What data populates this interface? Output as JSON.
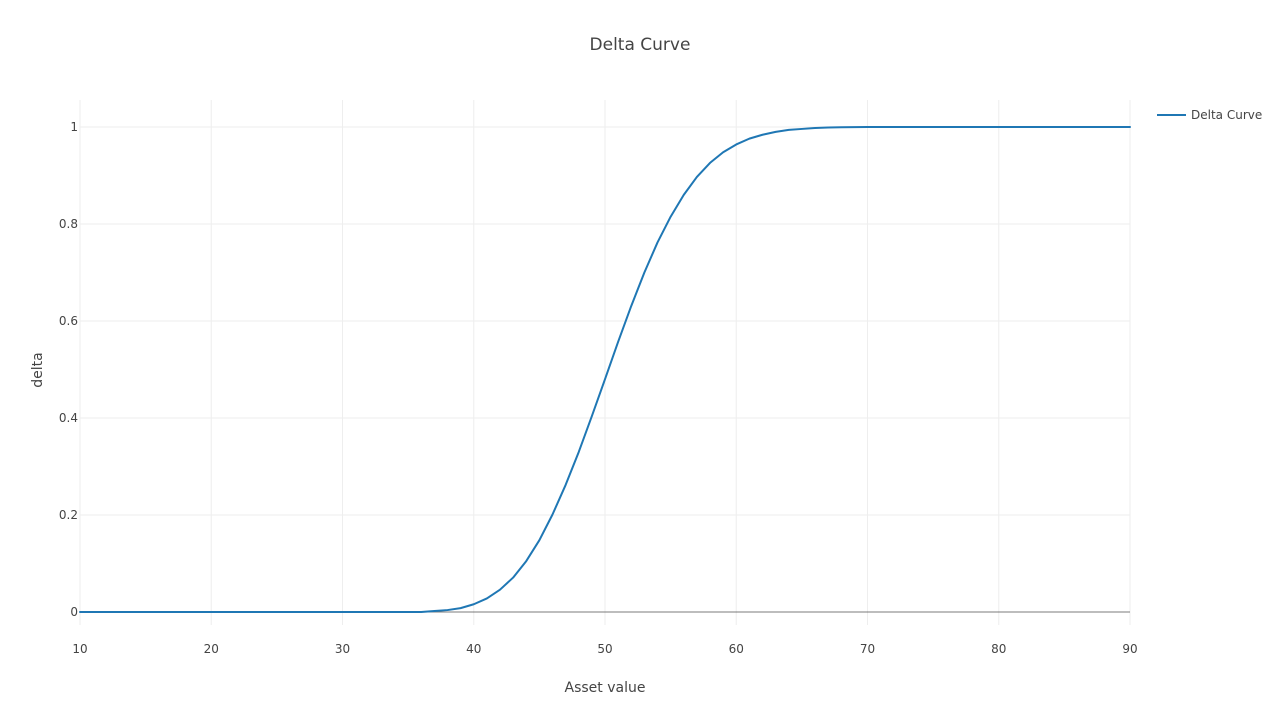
{
  "chart_data": {
    "type": "line",
    "title": "Delta Curve",
    "xlabel": "Asset value",
    "ylabel": "delta",
    "xlim": [
      10,
      90
    ],
    "ylim": [
      -0.03,
      1.06
    ],
    "x_ticks": [
      10,
      20,
      30,
      40,
      50,
      60,
      70,
      80,
      90
    ],
    "x_tick_labels": [
      "10",
      "20",
      "30",
      "40",
      "50",
      "60",
      "70",
      "80",
      "90"
    ],
    "y_ticks": [
      0,
      0.2,
      0.4,
      0.6,
      0.8,
      1
    ],
    "y_tick_labels": [
      "0",
      "0.2",
      "0.4",
      "0.6",
      "0.8",
      "1"
    ],
    "grid": true,
    "legend_position": "top-right",
    "series": [
      {
        "name": "Delta Curve",
        "color": "#1f77b4",
        "x": [
          10,
          15,
          20,
          25,
          30,
          34,
          36,
          37,
          38,
          39,
          40,
          41,
          42,
          43,
          44,
          45,
          46,
          47,
          48,
          49,
          50,
          51,
          52,
          53,
          54,
          55,
          56,
          57,
          58,
          59,
          60,
          61,
          62,
          63,
          64,
          65,
          66,
          67,
          68,
          70,
          72,
          75,
          80,
          85,
          90
        ],
        "values": [
          0,
          0,
          0,
          0,
          0,
          0,
          0,
          0.002,
          0.004,
          0.008,
          0.016,
          0.028,
          0.046,
          0.071,
          0.105,
          0.148,
          0.201,
          0.262,
          0.33,
          0.404,
          0.48,
          0.557,
          0.631,
          0.7,
          0.762,
          0.815,
          0.86,
          0.897,
          0.926,
          0.948,
          0.964,
          0.976,
          0.984,
          0.99,
          0.994,
          0.996,
          0.998,
          0.999,
          0.9995,
          1,
          1,
          1,
          1,
          1,
          1
        ]
      }
    ]
  }
}
